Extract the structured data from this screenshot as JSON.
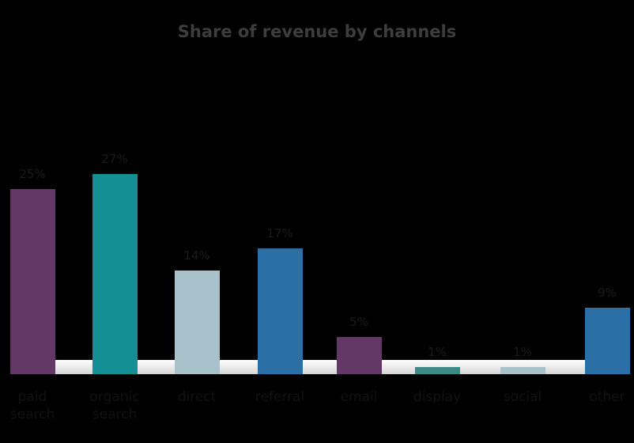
{
  "chart_data": {
    "type": "bar",
    "title": "Share of revenue by channels",
    "xlabel": "",
    "ylabel": "",
    "categories": [
      "paid search",
      "organic search",
      "direct",
      "referral",
      "email",
      "display",
      "social",
      "other"
    ],
    "values": [
      25,
      27,
      14,
      17,
      5,
      1,
      1,
      9
    ],
    "value_labels": [
      "25%",
      "27%",
      "14%",
      "17%",
      "5%",
      "1%",
      "1%",
      "9%"
    ],
    "colors": [
      "#643866",
      "#148f94",
      "#a9c1cb",
      "#2a6fa5",
      "#643866",
      "#3a8a85",
      "#a9c1cb",
      "#2a6fa5"
    ],
    "ylim": [
      0,
      30
    ],
    "grid": false,
    "legend": "none"
  },
  "title": "Share of revenue by channels",
  "labels": {
    "cat0": "paid\nsearch",
    "cat1": "organic\nsearch",
    "cat2": "direct",
    "cat3": "referral",
    "cat4": "email",
    "cat5": "display",
    "cat6": "social",
    "cat7": "other"
  }
}
